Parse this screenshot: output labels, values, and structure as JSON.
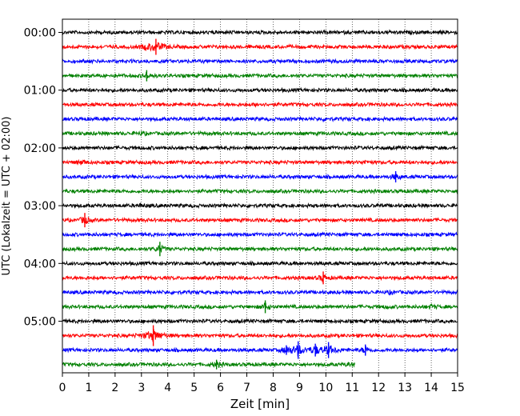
{
  "chart_data": {
    "type": "line",
    "title": "",
    "xlabel": "Zeit  [min]",
    "ylabel": "UTC (Lokalzeit = UTC + 02:00)",
    "xlim": [
      0,
      15
    ],
    "x_ticks": [
      "0",
      "1",
      "2",
      "3",
      "4",
      "5",
      "6",
      "7",
      "8",
      "9",
      "10",
      "11",
      "12",
      "13",
      "14",
      "15"
    ],
    "y_ticks": [
      "00:00",
      "01:00",
      "02:00",
      "03:00",
      "04:00",
      "05:00"
    ],
    "x_grid": "dotted vertical at each minute",
    "trace_interval_min": 15,
    "color_cycle": [
      "#000000",
      "#ff0000",
      "#0000ff",
      "#008000"
    ],
    "traces": [
      {
        "start": "00:00",
        "color": "#000000",
        "events": []
      },
      {
        "start": "00:15",
        "color": "#ff0000",
        "events": [
          {
            "t": 3.55,
            "amp": 10
          },
          {
            "t": 3.2,
            "amp": 4
          }
        ]
      },
      {
        "start": "00:30",
        "color": "#0000ff",
        "events": []
      },
      {
        "start": "00:45",
        "color": "#008000",
        "events": [
          {
            "t": 3.2,
            "amp": 7
          }
        ]
      },
      {
        "start": "01:00",
        "color": "#000000",
        "events": []
      },
      {
        "start": "01:15",
        "color": "#ff0000",
        "events": [
          {
            "t": 7.4,
            "amp": 3
          }
        ]
      },
      {
        "start": "01:30",
        "color": "#0000ff",
        "events": [
          {
            "t": 10.0,
            "amp": 3
          }
        ]
      },
      {
        "start": "01:45",
        "color": "#008000",
        "events": [
          {
            "t": 3.0,
            "amp": 3
          }
        ]
      },
      {
        "start": "02:00",
        "color": "#000000",
        "events": []
      },
      {
        "start": "02:15",
        "color": "#ff0000",
        "events": [
          {
            "t": 0.75,
            "amp": 5
          },
          {
            "t": 11.5,
            "amp": 3
          }
        ]
      },
      {
        "start": "02:30",
        "color": "#0000ff",
        "events": [
          {
            "t": 12.65,
            "amp": 7
          }
        ]
      },
      {
        "start": "02:45",
        "color": "#008000",
        "events": []
      },
      {
        "start": "03:00",
        "color": "#000000",
        "events": [
          {
            "t": 3.0,
            "amp": 3
          }
        ]
      },
      {
        "start": "03:15",
        "color": "#ff0000",
        "events": [
          {
            "t": 0.85,
            "amp": 9
          }
        ]
      },
      {
        "start": "03:30",
        "color": "#0000ff",
        "events": []
      },
      {
        "start": "03:45",
        "color": "#008000",
        "events": [
          {
            "t": 3.7,
            "amp": 9
          }
        ]
      },
      {
        "start": "04:00",
        "color": "#000000",
        "events": []
      },
      {
        "start": "04:15",
        "color": "#ff0000",
        "events": [
          {
            "t": 9.9,
            "amp": 8
          }
        ]
      },
      {
        "start": "04:30",
        "color": "#0000ff",
        "events": [
          {
            "t": 12.5,
            "amp": 3
          }
        ]
      },
      {
        "start": "04:45",
        "color": "#008000",
        "events": [
          {
            "t": 7.7,
            "amp": 8
          },
          {
            "t": 12.3,
            "amp": 3
          },
          {
            "t": 14.0,
            "amp": 4
          }
        ]
      },
      {
        "start": "05:00",
        "color": "#000000",
        "events": []
      },
      {
        "start": "05:15",
        "color": "#ff0000",
        "events": [
          {
            "t": 3.45,
            "amp": 13
          }
        ]
      },
      {
        "start": "05:30",
        "color": "#0000ff",
        "events": [
          {
            "t": 8.95,
            "amp": 11
          },
          {
            "t": 9.6,
            "amp": 8
          },
          {
            "t": 10.1,
            "amp": 10
          },
          {
            "t": 8.5,
            "amp": 6
          },
          {
            "t": 11.5,
            "amp": 7
          }
        ]
      },
      {
        "start": "05:45",
        "color": "#008000",
        "events": [
          {
            "t": 5.85,
            "amp": 6
          },
          {
            "t": 10.9,
            "amp": 4
          }
        ],
        "end_x": 11.1
      }
    ]
  }
}
